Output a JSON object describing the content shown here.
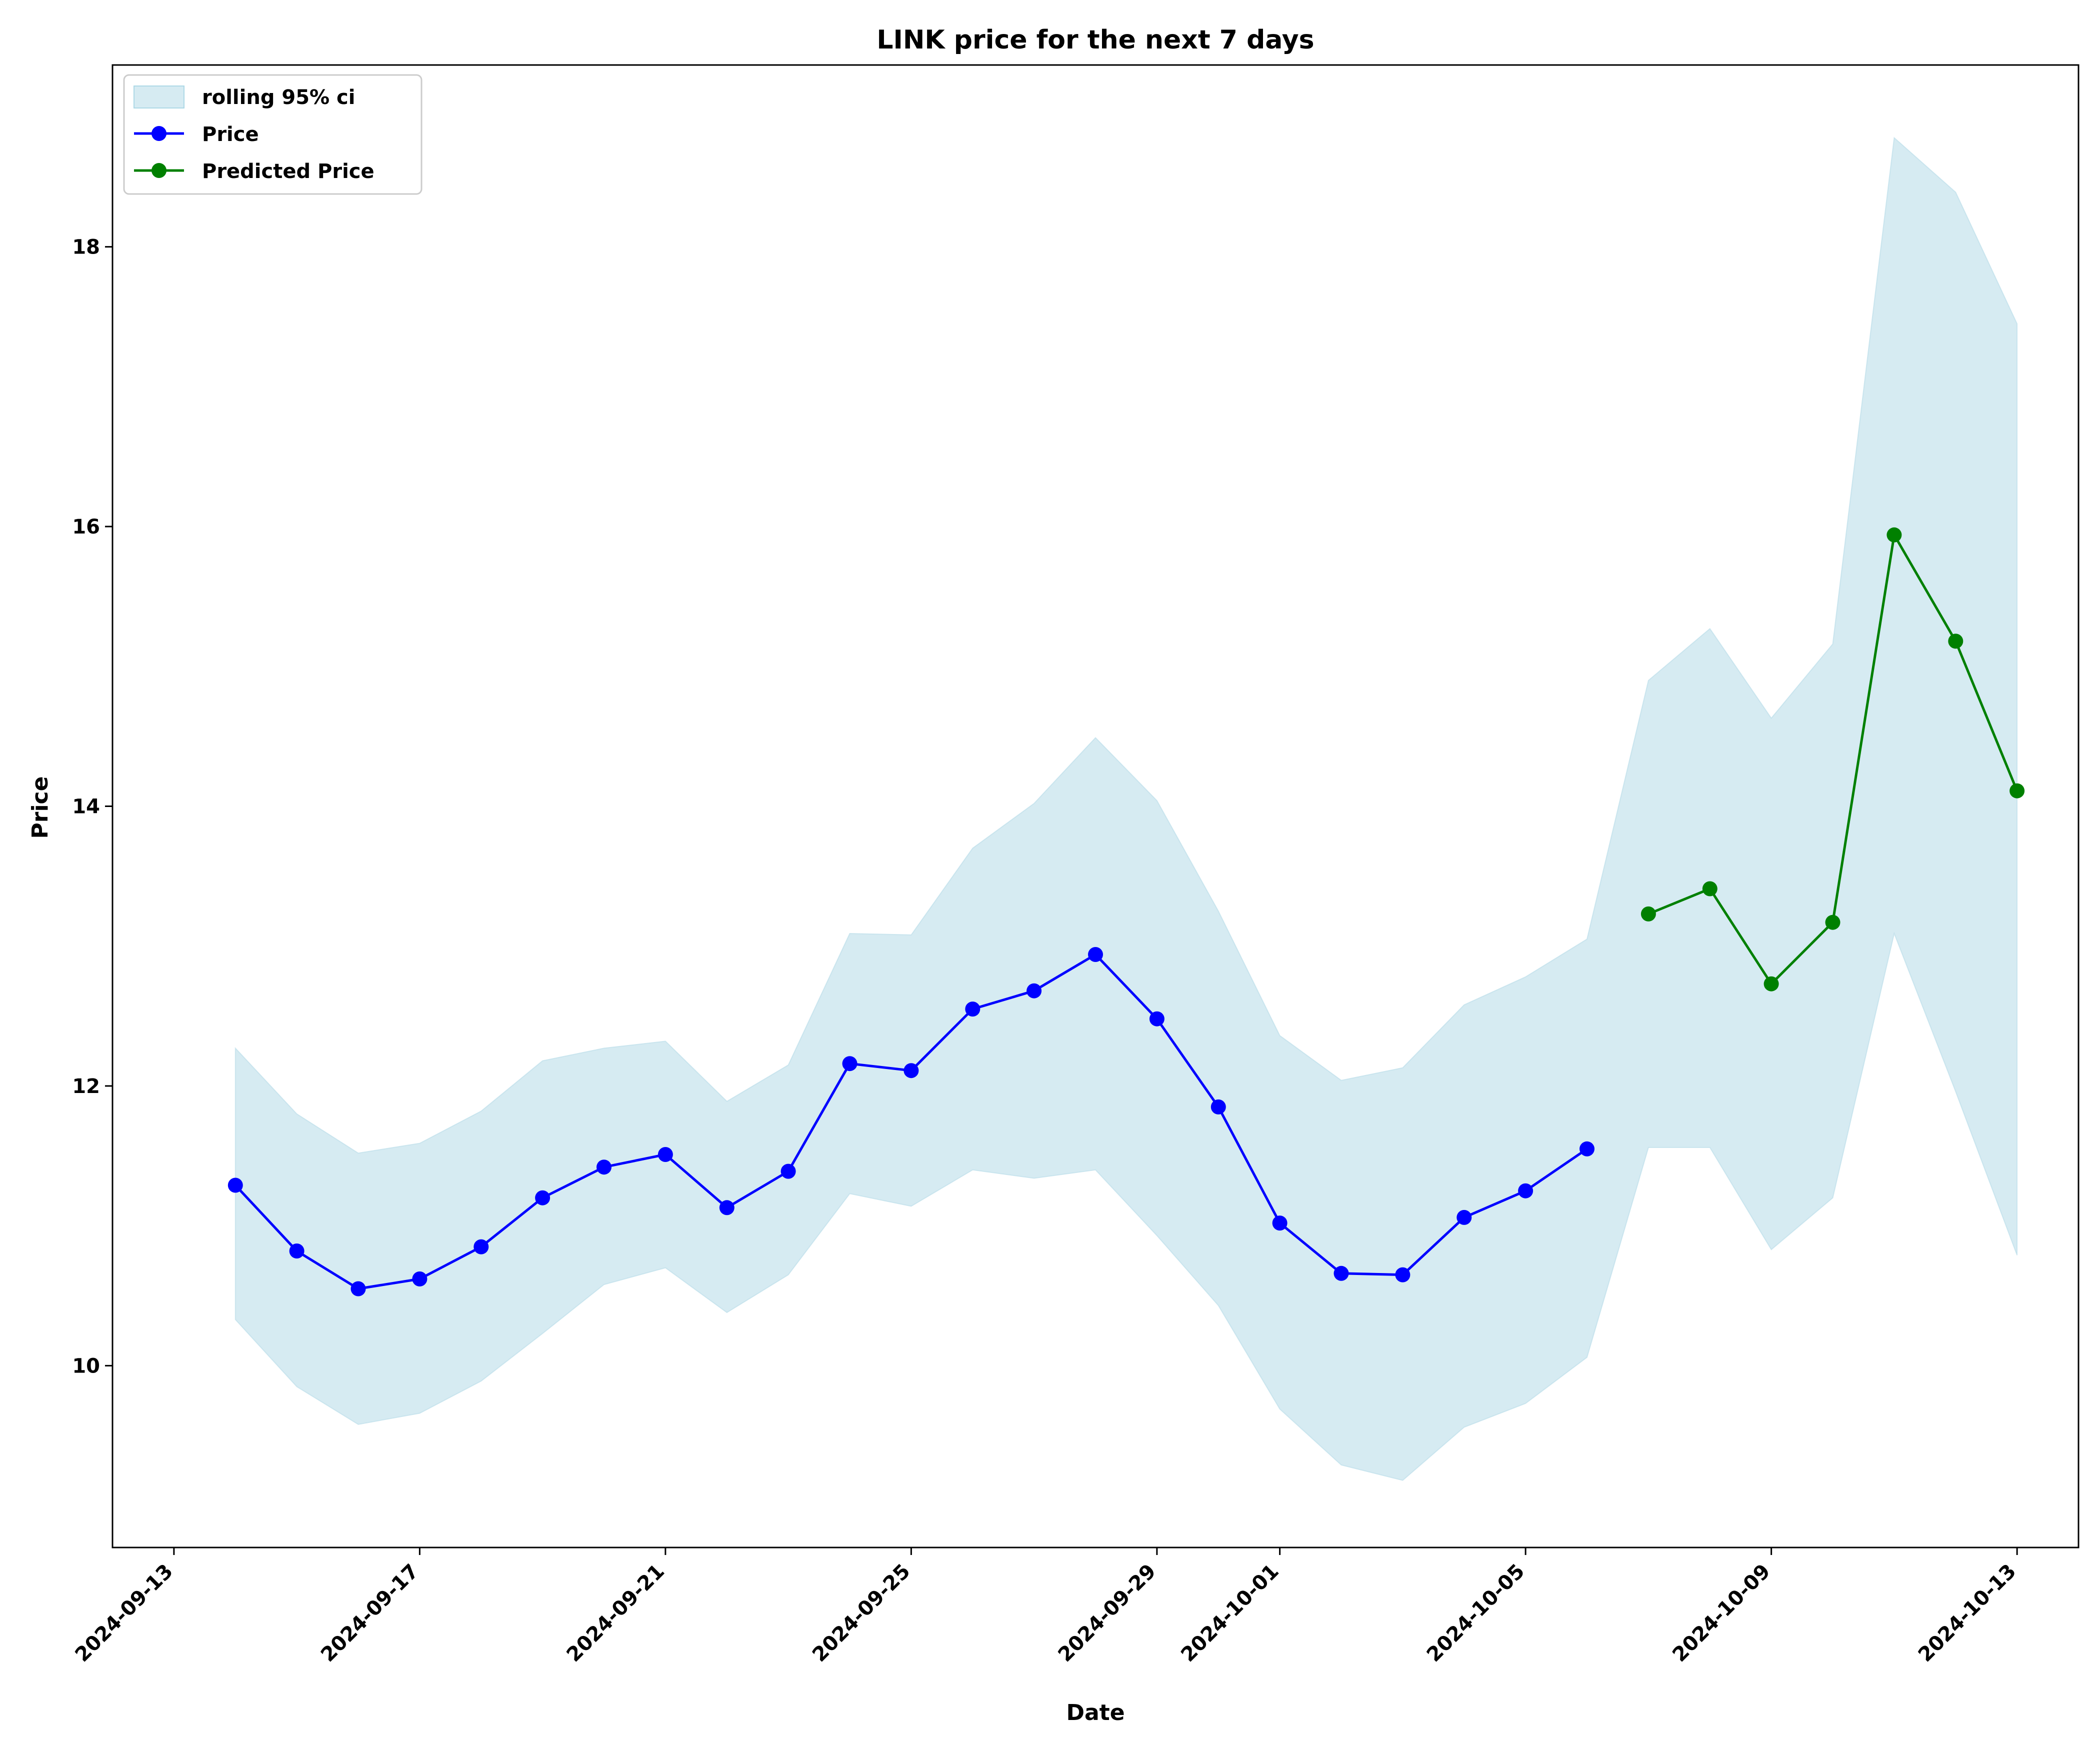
{
  "chart_data": {
    "type": "line",
    "title": "LINK price for the next 7 days",
    "xlabel": "Date",
    "ylabel": "Price",
    "xlim": [
      "2024-09-12",
      "2024-10-14"
    ],
    "ylim": [
      8.7,
      19.3
    ],
    "x_ticks": [
      "2024-09-13",
      "2024-09-17",
      "2024-09-21",
      "2024-09-25",
      "2024-09-29",
      "2024-10-01",
      "2024-10-05",
      "2024-10-09",
      "2024-10-13"
    ],
    "y_ticks": [
      10,
      12,
      14,
      16,
      18
    ],
    "legend_position": "top-left",
    "grid": false,
    "series": [
      {
        "name": "Price",
        "color": "#0000ff",
        "marker": "circle",
        "x": [
          "2024-09-14",
          "2024-09-15",
          "2024-09-16",
          "2024-09-17",
          "2024-09-18",
          "2024-09-19",
          "2024-09-20",
          "2024-09-21",
          "2024-09-22",
          "2024-09-23",
          "2024-09-24",
          "2024-09-25",
          "2024-09-26",
          "2024-09-27",
          "2024-09-28",
          "2024-09-29",
          "2024-09-30",
          "2024-10-01",
          "2024-10-02",
          "2024-10-03",
          "2024-10-04",
          "2024-10-05",
          "2024-10-06"
        ],
        "values": [
          11.29,
          10.82,
          10.55,
          10.62,
          10.85,
          11.2,
          11.42,
          11.51,
          11.13,
          11.39,
          12.16,
          12.11,
          12.55,
          12.68,
          12.94,
          12.48,
          11.85,
          11.02,
          10.66,
          10.65,
          11.06,
          11.25,
          11.55
        ]
      },
      {
        "name": "Predicted Price",
        "color": "#008000",
        "marker": "circle",
        "x": [
          "2024-10-07",
          "2024-10-08",
          "2024-10-09",
          "2024-10-10",
          "2024-10-11",
          "2024-10-12",
          "2024-10-13"
        ],
        "values": [
          13.23,
          13.41,
          12.73,
          13.17,
          15.94,
          15.18,
          14.11
        ]
      }
    ],
    "band": {
      "name": "rolling 95% ci",
      "color": "#add8e6",
      "x": [
        "2024-09-14",
        "2024-09-15",
        "2024-09-16",
        "2024-09-17",
        "2024-09-18",
        "2024-09-19",
        "2024-09-20",
        "2024-09-21",
        "2024-09-22",
        "2024-09-23",
        "2024-09-24",
        "2024-09-25",
        "2024-09-26",
        "2024-09-27",
        "2024-09-28",
        "2024-09-29",
        "2024-09-30",
        "2024-10-01",
        "2024-10-02",
        "2024-10-03",
        "2024-10-04",
        "2024-10-05",
        "2024-10-06",
        "2024-10-07",
        "2024-10-08",
        "2024-10-09",
        "2024-10-10",
        "2024-10-11",
        "2024-10-12",
        "2024-10-13"
      ],
      "upper": [
        12.27,
        11.8,
        11.52,
        11.59,
        11.82,
        12.18,
        12.27,
        12.32,
        11.89,
        12.15,
        13.09,
        13.08,
        13.7,
        14.02,
        14.49,
        14.04,
        13.25,
        12.36,
        12.04,
        12.13,
        12.58,
        12.78,
        13.05,
        14.9,
        15.27,
        14.63,
        15.16,
        18.78,
        18.39,
        17.45
      ],
      "lower": [
        10.33,
        9.85,
        9.58,
        9.66,
        9.89,
        10.23,
        10.58,
        10.7,
        10.38,
        10.65,
        11.23,
        11.14,
        11.4,
        11.34,
        11.4,
        10.93,
        10.43,
        9.69,
        9.29,
        9.18,
        9.56,
        9.73,
        10.06,
        11.56,
        11.56,
        10.83,
        11.2,
        13.09,
        11.96,
        10.79
      ]
    }
  }
}
